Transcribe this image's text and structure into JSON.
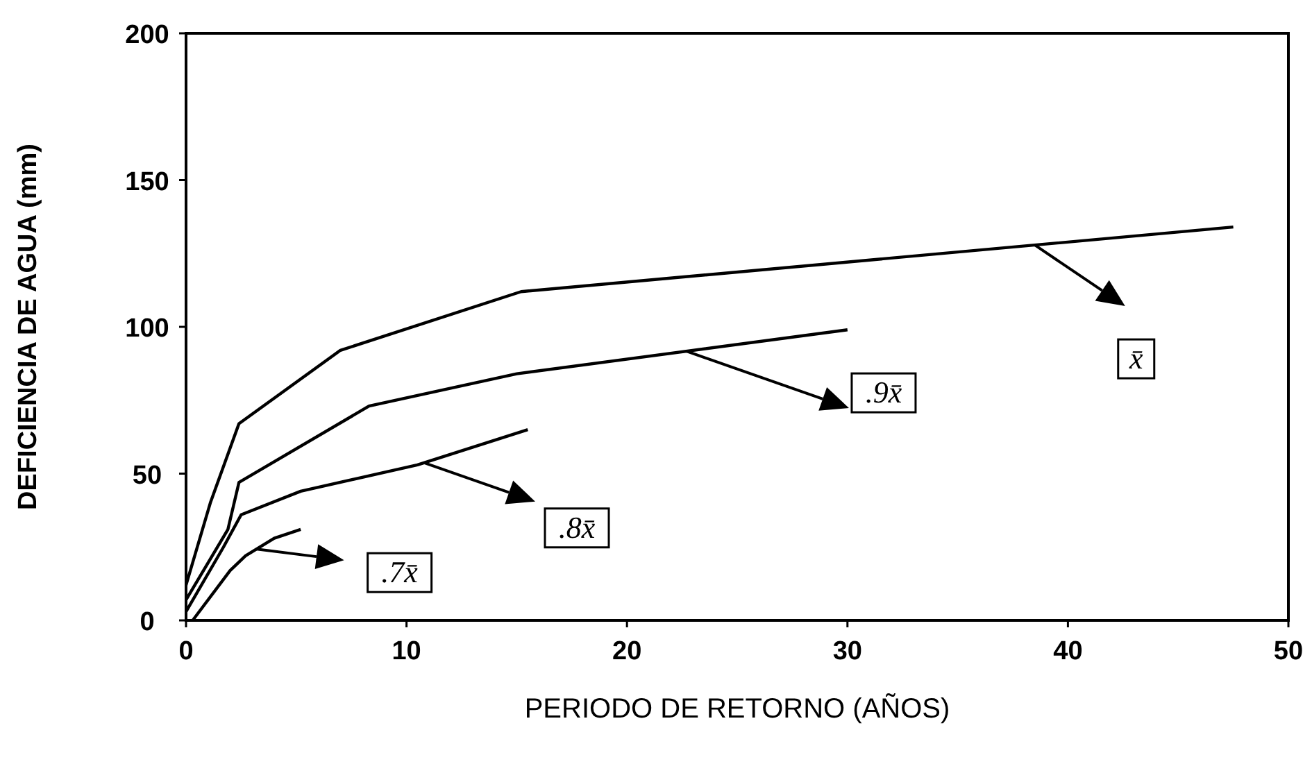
{
  "chart_data": {
    "type": "line",
    "xlabel": "PERIODO DE RETORNO (AÑOS)",
    "ylabel": "DEFICIENCIA DE AGUA (mm)",
    "xlim": [
      0,
      50
    ],
    "xticks": [
      0,
      10,
      20,
      30,
      40,
      50
    ],
    "ylim": [
      0,
      200
    ],
    "yticks": [
      0,
      50,
      100,
      150,
      200
    ],
    "grid": false,
    "legend": "center",
    "marker": "none",
    "line_style": "solid",
    "series": [
      {
        "name": "x̄",
        "color": "#000000",
        "x": [
          0,
          1.1,
          2.4,
          7,
          15.2,
          47.5
        ],
        "values": [
          12,
          40,
          67,
          92,
          112,
          134
        ]
      },
      {
        "name": ".9x̄",
        "color": "#000000",
        "x": [
          0,
          1.9,
          2.4,
          8.3,
          15,
          30
        ],
        "values": [
          7,
          31,
          47,
          73,
          84,
          99
        ]
      },
      {
        "name": ".8x̄",
        "color": "#000000",
        "x": [
          0,
          1.7,
          2.5,
          5.2,
          10.5,
          15.5
        ],
        "values": [
          3,
          25,
          36,
          44,
          53,
          65
        ]
      },
      {
        "name": ".7x̄",
        "color": "#000000",
        "x": [
          0.3,
          2,
          2.7,
          4,
          5.2
        ],
        "values": [
          0,
          17,
          22,
          28,
          31
        ]
      }
    ]
  }
}
